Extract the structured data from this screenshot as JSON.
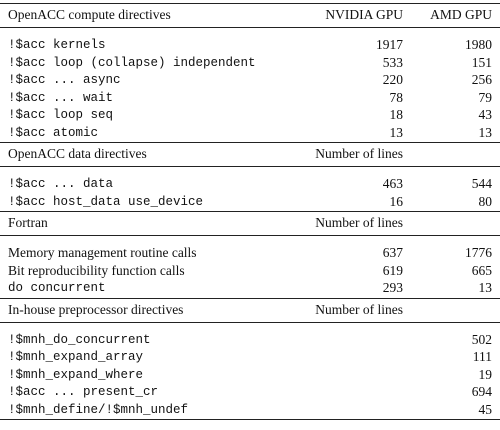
{
  "sections": [
    {
      "header": [
        "OpenACC compute directives",
        "NVIDIA GPU",
        "AMD GPU"
      ],
      "rows": [
        {
          "cells": [
            "!$acc kernels",
            1917,
            1980
          ],
          "code": true
        },
        {
          "cells": [
            "!$acc loop (collapse) independent",
            533,
            151
          ],
          "code": true
        },
        {
          "cells": [
            "!$acc ... async",
            220,
            256
          ],
          "code": true
        },
        {
          "cells": [
            "!$acc ... wait",
            78,
            79
          ],
          "code": true
        },
        {
          "cells": [
            "!$acc loop seq",
            18,
            43
          ],
          "code": true
        },
        {
          "cells": [
            "!$acc atomic",
            13,
            13
          ],
          "code": true
        }
      ]
    },
    {
      "header": [
        "OpenACC data directives",
        "Number of lines"
      ],
      "rows": [
        {
          "cells": [
            "!$acc ... data",
            463,
            544
          ],
          "code": true
        },
        {
          "cells": [
            "!$acc host_data use_device",
            16,
            80
          ],
          "code": true
        }
      ]
    },
    {
      "header": [
        "Fortran",
        "Number of lines"
      ],
      "rows": [
        {
          "cells": [
            "Memory management routine calls",
            637,
            1776
          ],
          "code": false
        },
        {
          "cells": [
            "Bit reproducibility function calls",
            619,
            665
          ],
          "code": false
        },
        {
          "cells": [
            "do concurrent",
            293,
            13
          ],
          "code": true
        }
      ]
    },
    {
      "header": [
        "In-house preprocessor directives",
        "Number of lines"
      ],
      "rows": [
        {
          "cells": [
            "!$mnh_do_concurrent",
            null,
            502
          ],
          "code": true
        },
        {
          "cells": [
            "!$mnh_expand_array",
            null,
            111
          ],
          "code": true
        },
        {
          "cells": [
            "!$mnh_expand_where",
            null,
            19
          ],
          "code": true
        },
        {
          "cells": [
            "!$acc ... present_cr",
            null,
            694
          ],
          "code": true
        },
        {
          "cells": [
            "!$mnh_define/!$mnh_undef",
            null,
            45
          ],
          "code": true
        }
      ]
    }
  ]
}
